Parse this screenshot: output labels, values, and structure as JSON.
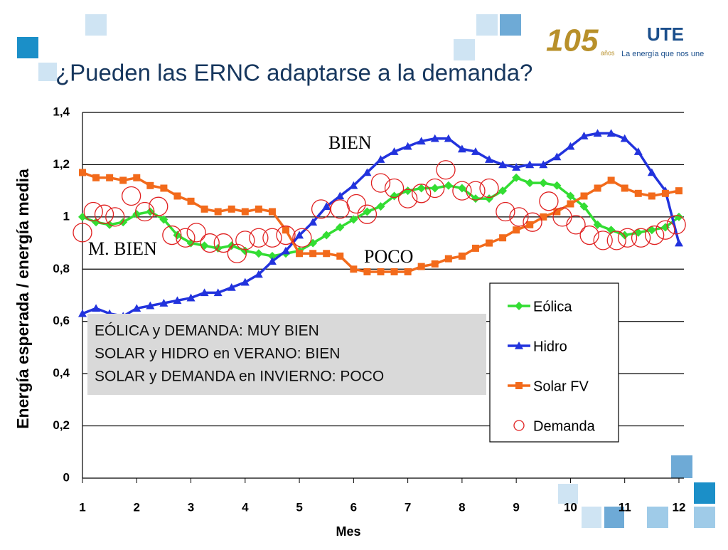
{
  "header": {
    "title": "¿Pueden las ERNC adaptarse a la demanda?",
    "logo_number": "105",
    "logo_years": "años",
    "brand": "UTE",
    "tagline": "La energía que nos une"
  },
  "chart_data": {
    "type": "line",
    "xlabel": "Mes",
    "ylabel": "Energía esperada / energía media",
    "xlim": [
      1,
      12.1
    ],
    "ylim": [
      0,
      1.4
    ],
    "xticks": [
      1,
      2,
      3,
      4,
      5,
      6,
      7,
      8,
      9,
      10,
      11,
      12
    ],
    "yticks": [
      0,
      {
        "value": 0.2,
        "label": "0,2"
      },
      {
        "value": 0.4,
        "label": "0,4"
      },
      {
        "value": 0.6,
        "label": "0,6"
      },
      {
        "value": 0.8,
        "label": "0,8"
      },
      1,
      {
        "value": 1.2,
        "label": "1,2"
      },
      {
        "value": 1.4,
        "label": "1,4"
      }
    ],
    "grid": true,
    "x": [
      1,
      1.25,
      1.5,
      1.75,
      2,
      2.25,
      2.5,
      2.75,
      3,
      3.25,
      3.5,
      3.75,
      4,
      4.25,
      4.5,
      4.75,
      5,
      5.25,
      5.5,
      5.75,
      6,
      6.25,
      6.5,
      6.75,
      7,
      7.25,
      7.5,
      7.75,
      8,
      8.25,
      8.5,
      8.75,
      9,
      9.25,
      9.5,
      9.75,
      10,
      10.25,
      10.5,
      10.75,
      11,
      11.25,
      11.5,
      11.75,
      12
    ],
    "series": [
      {
        "name": "Eólica",
        "color": "#33dd33",
        "marker": "diamond",
        "line": true,
        "values": [
          1.0,
          0.98,
          0.97,
          0.98,
          1.01,
          1.02,
          0.99,
          0.93,
          0.9,
          0.89,
          0.88,
          0.89,
          0.87,
          0.86,
          0.85,
          0.86,
          0.87,
          0.9,
          0.93,
          0.96,
          0.99,
          1.02,
          1.04,
          1.08,
          1.1,
          1.11,
          1.11,
          1.12,
          1.11,
          1.07,
          1.07,
          1.1,
          1.15,
          1.13,
          1.13,
          1.12,
          1.08,
          1.04,
          0.97,
          0.95,
          0.93,
          0.94,
          0.95,
          0.96,
          1.0
        ]
      },
      {
        "name": "Hidro",
        "color": "#2233dd",
        "marker": "triangle",
        "line": true,
        "values": [
          0.63,
          0.65,
          0.63,
          0.62,
          0.65,
          0.66,
          0.67,
          0.68,
          0.69,
          0.71,
          0.71,
          0.73,
          0.75,
          0.78,
          0.83,
          0.87,
          0.93,
          0.98,
          1.04,
          1.08,
          1.12,
          1.17,
          1.22,
          1.25,
          1.27,
          1.29,
          1.3,
          1.3,
          1.26,
          1.25,
          1.22,
          1.2,
          1.19,
          1.2,
          1.2,
          1.23,
          1.27,
          1.31,
          1.32,
          1.32,
          1.3,
          1.25,
          1.17,
          1.1,
          0.9
        ]
      },
      {
        "name": "Solar FV",
        "color": "#f26a1b",
        "marker": "square",
        "line": true,
        "values": [
          1.17,
          1.15,
          1.15,
          1.14,
          1.15,
          1.12,
          1.11,
          1.08,
          1.06,
          1.03,
          1.02,
          1.03,
          1.02,
          1.03,
          1.02,
          0.95,
          0.86,
          0.86,
          0.86,
          0.85,
          0.8,
          0.79,
          0.79,
          0.79,
          0.79,
          0.81,
          0.82,
          0.84,
          0.85,
          0.88,
          0.9,
          0.92,
          0.95,
          0.97,
          1.0,
          1.02,
          1.05,
          1.08,
          1.11,
          1.14,
          1.11,
          1.09,
          1.08,
          1.09,
          1.1
        ]
      },
      {
        "name": "Demanda",
        "color": "#e02020",
        "marker": "circle",
        "line": false,
        "x": [
          1.0,
          1.2,
          1.4,
          1.6,
          1.9,
          2.15,
          2.4,
          2.65,
          2.9,
          3.1,
          3.35,
          3.6,
          3.85,
          4.0,
          4.25,
          4.5,
          4.75,
          5.05,
          5.4,
          5.75,
          6.05,
          6.25,
          6.5,
          6.75,
          7.0,
          7.25,
          7.5,
          7.7,
          8.0,
          8.25,
          8.5,
          8.8,
          9.05,
          9.3,
          9.6,
          9.85,
          10.1,
          10.35,
          10.6,
          10.85,
          11.05,
          11.3,
          11.55,
          11.75,
          11.95
        ],
        "values": [
          0.94,
          1.02,
          1.01,
          1.0,
          1.08,
          1.02,
          1.04,
          0.93,
          0.92,
          0.94,
          0.9,
          0.9,
          0.86,
          0.91,
          0.92,
          0.92,
          0.93,
          0.92,
          1.03,
          1.03,
          1.05,
          1.01,
          1.13,
          1.11,
          1.07,
          1.09,
          1.11,
          1.18,
          1.1,
          1.1,
          1.11,
          1.02,
          1.0,
          0.98,
          1.06,
          1.0,
          0.97,
          0.93,
          0.91,
          0.91,
          0.92,
          0.92,
          0.93,
          0.95,
          0.97
        ]
      }
    ],
    "annotations": [
      "BIEN",
      "M. BIEN",
      "POCO"
    ],
    "note_lines": [
      "EÓLICA y DEMANDA: MUY BIEN",
      "SOLAR y HIDRO en VERANO: BIEN",
      "SOLAR y DEMANDA en INVIERNO: POCO"
    ]
  }
}
